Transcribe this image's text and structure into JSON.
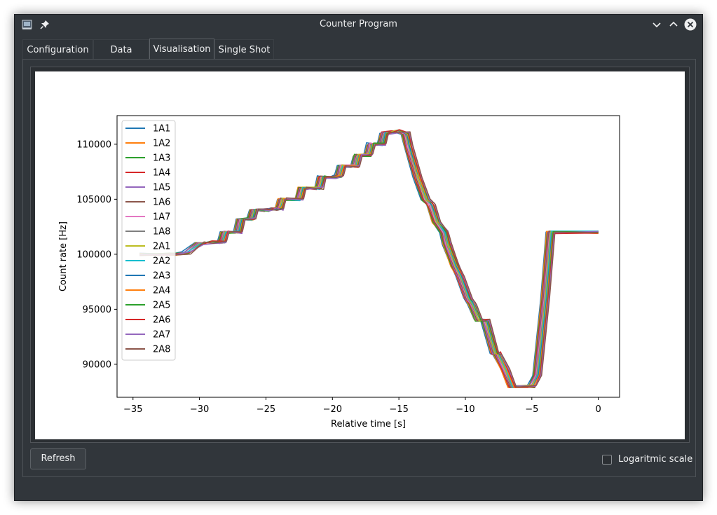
{
  "window": {
    "title": "Counter Program"
  },
  "tabs": [
    {
      "label": "Configuration"
    },
    {
      "label": "Data"
    },
    {
      "label": "Visualisation"
    },
    {
      "label": "Single Shot"
    }
  ],
  "active_tab": "Visualisation",
  "controls": {
    "refresh_label": "Refresh",
    "log_scale_label": "Logaritmic scale",
    "log_scale_checked": false
  },
  "colors": {
    "window_bg": "#31363b",
    "text": "#eff0f1",
    "series": [
      "#1f77b4",
      "#ff7f0e",
      "#2ca02c",
      "#d62728",
      "#9467bd",
      "#8c564b",
      "#e377c2",
      "#7f7f7f",
      "#bcbd22",
      "#17becf",
      "#1f77b4",
      "#ff7f0e",
      "#2ca02c",
      "#d62728",
      "#9467bd",
      "#8c564b"
    ]
  },
  "chart_data": {
    "type": "line",
    "xlabel": "Relative time [s]",
    "ylabel": "Count rate [Hz]",
    "xlim": [
      -36.2,
      1.6
    ],
    "ylim": [
      87000,
      112600
    ],
    "xticks": [
      -35,
      -30,
      -25,
      -20,
      -15,
      -10,
      -5,
      0
    ],
    "xtick_labels": [
      "−35",
      "−30",
      "−25",
      "−20",
      "−15",
      "−10",
      "−5",
      "0"
    ],
    "yticks": [
      90000,
      95000,
      100000,
      105000,
      110000
    ],
    "ytick_labels": [
      "90000",
      "95000",
      "100000",
      "105000",
      "110000"
    ],
    "legend_position": "top-left",
    "legend": [
      "1A1",
      "1A2",
      "1A3",
      "1A4",
      "1A5",
      "1A6",
      "1A7",
      "1A8",
      "2A1",
      "2A2",
      "2A3",
      "2A4",
      "2A5",
      "2A6",
      "2A7",
      "2A8"
    ],
    "series_profile": {
      "x": [
        -34.5,
        -32.0,
        -31.0,
        -30.0,
        -29.3,
        -28.3,
        -28.1,
        -27.1,
        -26.9,
        -26.1,
        -25.9,
        -25.0,
        -24.5,
        -24.0,
        -23.8,
        -22.5,
        -22.3,
        -21.0,
        -20.8,
        -20.0,
        -19.5,
        -19.3,
        -18.3,
        -18.1,
        -17.3,
        -17.1,
        -16.3,
        -16.1,
        -15.4,
        -15.2,
        -14.5,
        -14.3,
        -13.6,
        -13.0,
        -12.6,
        -12.2,
        -11.6,
        -11.4,
        -10.8,
        -10.4,
        -9.8,
        -9.5,
        -9.0,
        -8.5,
        -7.8,
        -7.6,
        -7.0,
        -6.5,
        -5.0,
        -4.6,
        -4.0,
        -3.6,
        0.0
      ],
      "y": [
        100000,
        100000,
        100100,
        101000,
        101100,
        101100,
        102000,
        102000,
        103200,
        103200,
        104000,
        104000,
        104100,
        104100,
        105000,
        105000,
        106000,
        106000,
        107000,
        107000,
        107100,
        108000,
        108000,
        109000,
        109000,
        110000,
        110000,
        111000,
        111100,
        111200,
        111000,
        109900,
        107000,
        105000,
        104500,
        103000,
        102000,
        101000,
        99000,
        98000,
        96000,
        95500,
        94000,
        94000,
        91000,
        91000,
        89500,
        88000,
        88000,
        89000,
        96000,
        102000,
        102000
      ]
    }
  }
}
